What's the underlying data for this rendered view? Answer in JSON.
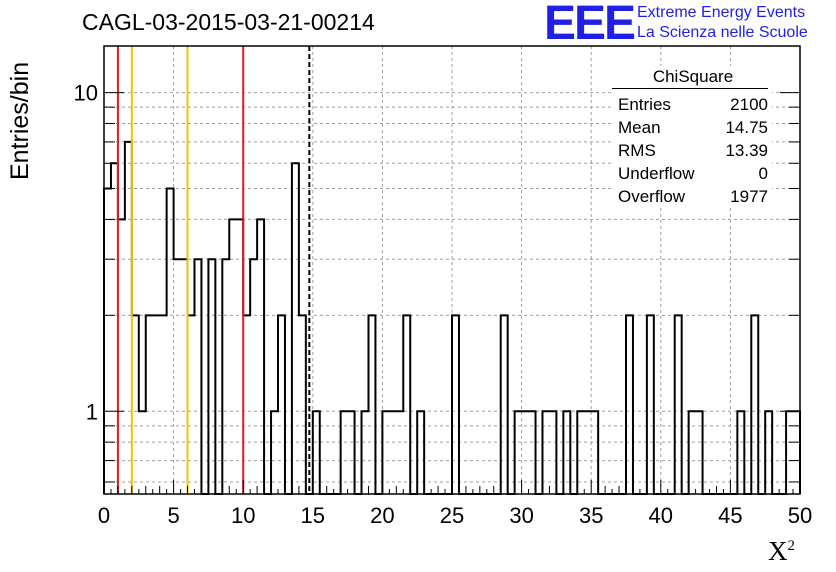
{
  "header": {
    "title": "CAGL-03-2015-03-21-00214",
    "logo_text": "EEE",
    "tagline_1": "Extreme Energy Events",
    "tagline_2": "La Scienza nelle Scuole"
  },
  "stats_box": {
    "title": "ChiSquare",
    "rows": [
      {
        "label": "Entries",
        "value": "2100"
      },
      {
        "label": "Mean",
        "value": "14.75"
      },
      {
        "label": "RMS",
        "value": "13.39"
      },
      {
        "label": "Underflow",
        "value": "0"
      },
      {
        "label": "Overflow",
        "value": "1977"
      }
    ]
  },
  "chart_data": {
    "type": "bar",
    "style": "step-histogram",
    "title": "CAGL-03-2015-03-21-00214",
    "xlabel": "X",
    "xlabel_superscript": "2",
    "ylabel": "Entries/bin",
    "xlim": [
      0,
      50
    ],
    "ylim": [
      0.55,
      14
    ],
    "y_scale": "log",
    "grid": true,
    "x_ticks": [
      0,
      5,
      10,
      15,
      20,
      25,
      30,
      35,
      40,
      45,
      50
    ],
    "y_tick_labels": [
      {
        "value": 1,
        "label": "1"
      },
      {
        "value": 10,
        "label": "10"
      }
    ],
    "bin_width": 0.5,
    "counts": [
      5,
      6,
      4,
      7,
      2,
      1,
      2,
      2,
      2,
      5,
      3,
      3,
      2,
      3,
      0,
      3,
      0,
      3,
      4,
      4,
      2,
      3,
      4,
      0,
      1,
      2,
      0,
      6,
      2,
      0,
      1,
      0,
      0,
      0,
      1,
      1,
      0,
      1,
      2,
      0,
      1,
      1,
      1,
      2,
      0,
      1,
      0,
      0,
      0,
      0,
      2,
      0,
      0,
      0,
      0,
      0,
      0,
      2,
      0,
      1,
      1,
      1,
      0,
      1,
      1,
      0,
      1,
      0,
      1,
      1,
      1,
      0,
      0,
      0,
      0,
      2,
      0,
      0,
      2,
      0,
      0,
      0,
      2,
      0,
      1,
      1,
      0,
      0,
      0,
      0,
      0,
      1,
      0,
      2,
      0,
      1,
      0,
      0,
      1,
      1
    ],
    "vertical_lines": [
      {
        "x": 1,
        "color": "#e21b1b",
        "style": "solid"
      },
      {
        "x": 2,
        "color": "#f2c200",
        "style": "solid"
      },
      {
        "x": 6,
        "color": "#f2c200",
        "style": "solid"
      },
      {
        "x": 10,
        "color": "#e21b1b",
        "style": "solid"
      },
      {
        "x": 14.75,
        "color": "#000000",
        "style": "dashed"
      }
    ],
    "legend_placement": "top-right"
  },
  "colors": {
    "histogram": "#000000",
    "grid": "#a0a0a0",
    "logo": "#1f1fe8"
  }
}
